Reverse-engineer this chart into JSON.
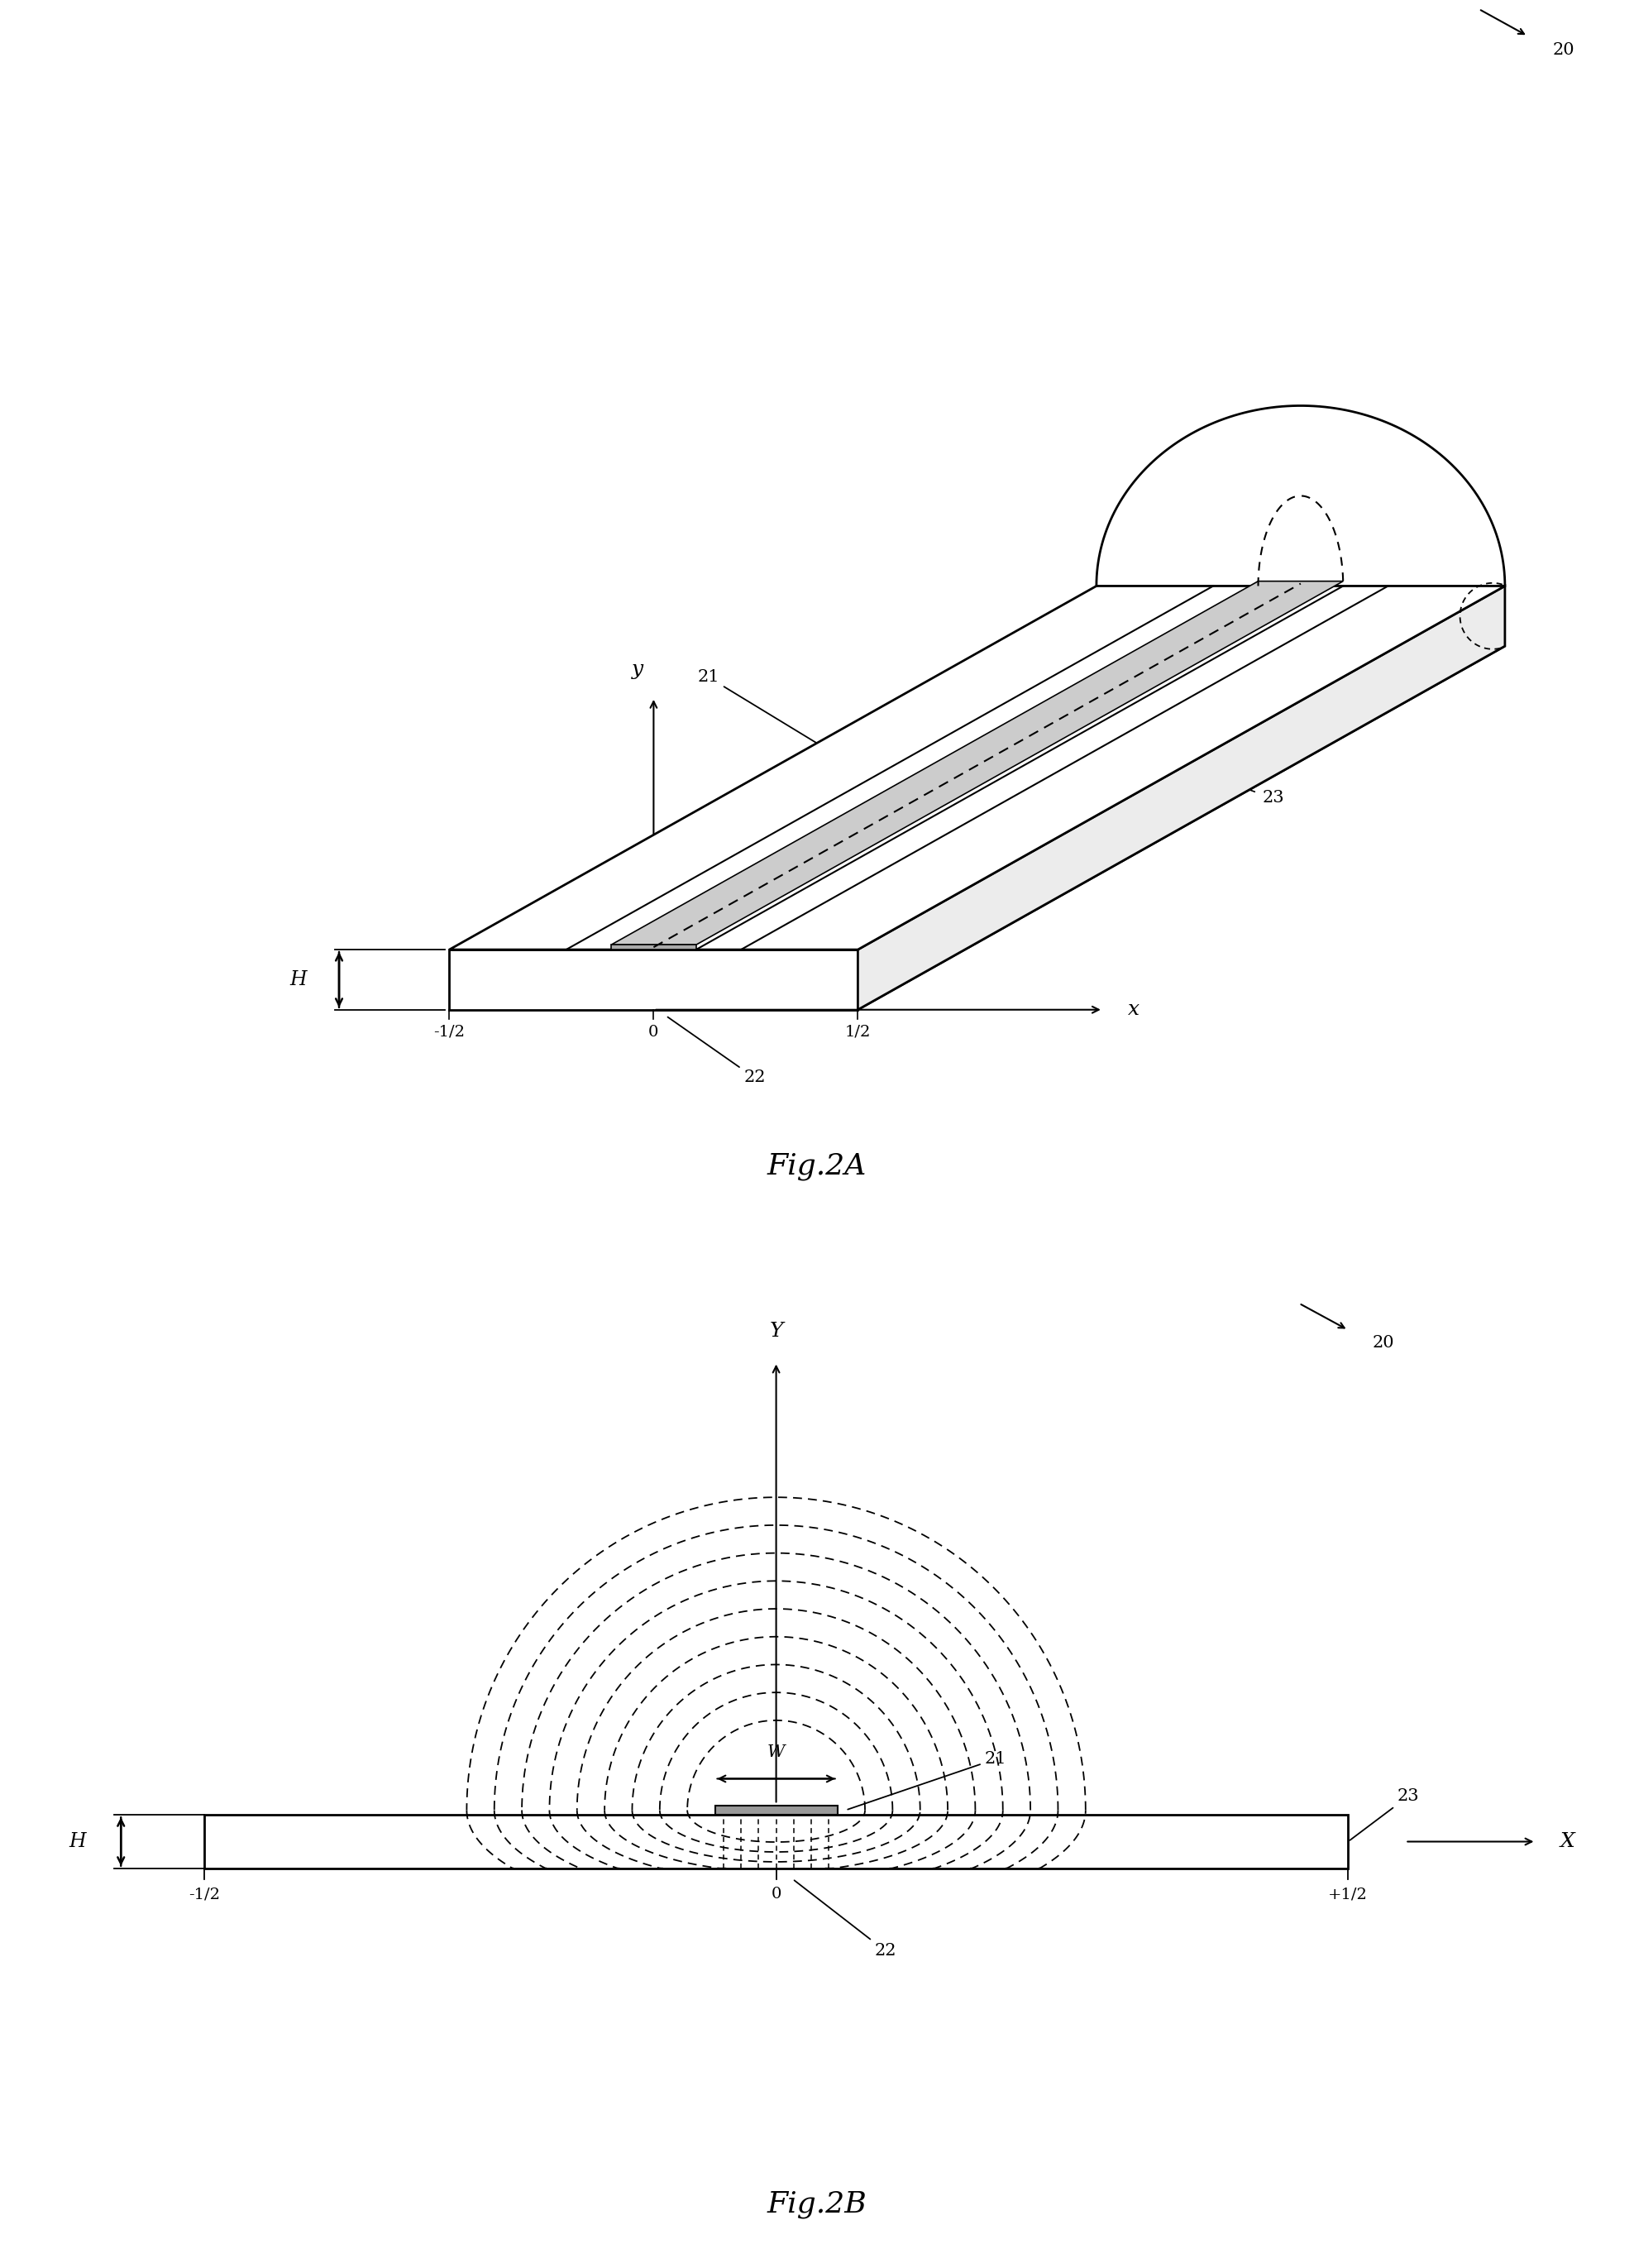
{
  "bg_color": "#ffffff",
  "line_color": "#000000",
  "fig2a_title": "Fig.2A",
  "fig2b_title": "Fig.2B",
  "label_20": "20",
  "label_21": "21",
  "label_22": "22",
  "label_23": "23",
  "label_H": "H",
  "label_W": "W",
  "label_x": "x",
  "label_y": "y",
  "label_X": "X",
  "label_Y": "Y",
  "label_neg_half": "-1/2",
  "label_zero": "0",
  "label_half": "1/2",
  "label_plus_half": "+1/2"
}
